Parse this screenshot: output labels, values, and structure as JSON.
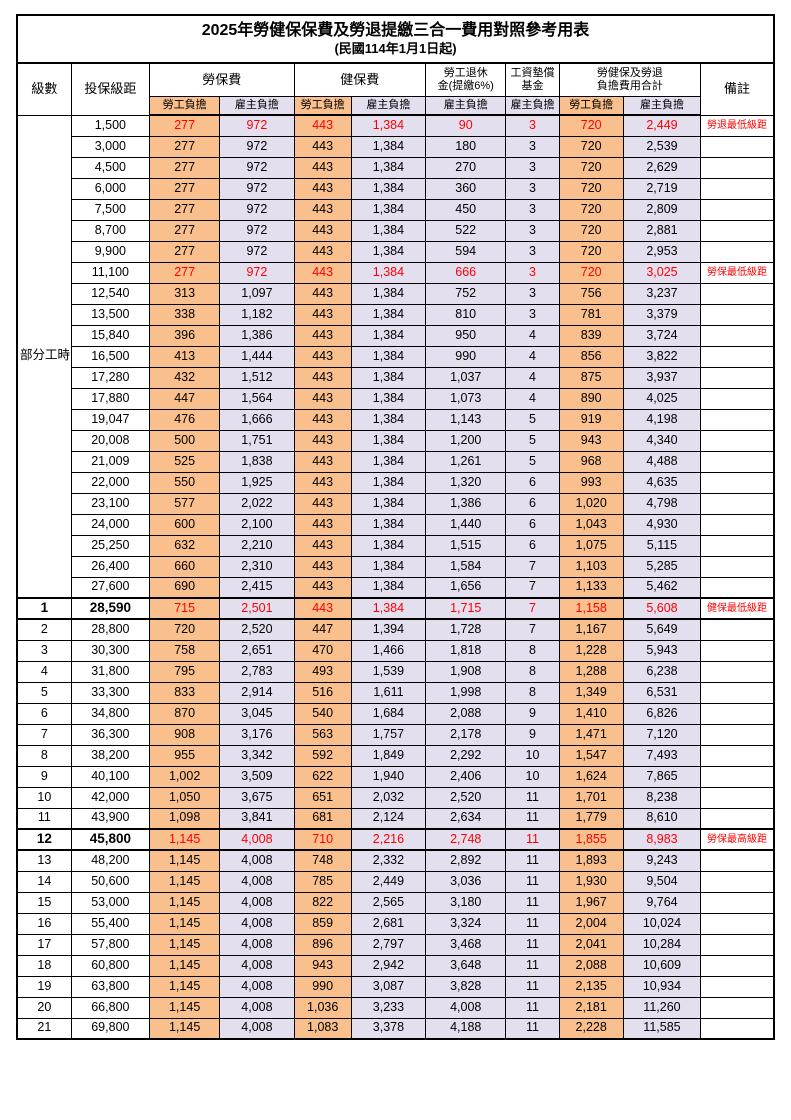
{
  "title": "2025年勞健保保費及勞退提繳三合一費用對照參考用表",
  "subtitle": "(民國114年1月1日起)",
  "colors": {
    "employee_column_bg": "#F9C08D",
    "employer_column_bg": "#E3DFEF",
    "highlight_text": "#FF0000",
    "border": "#000000"
  },
  "header": {
    "level": "級數",
    "bracket": "投保級距",
    "labor_insurance": "勞保費",
    "health_insurance": "健保費",
    "pension": "勞工退休\n金(提繳6%)",
    "wage_fund": "工資墊償\n基金",
    "total": "勞健保及勞退\n負擔費用合計",
    "remark": "備註",
    "employee_share": "勞工負擔",
    "employer_share": "雇主負擔"
  },
  "part_time": {
    "label": "部分工時",
    "rows": [
      {
        "cells": [
          "1,500",
          "277",
          "972",
          "443",
          "1,384",
          "90",
          "3",
          "720",
          "2,449",
          "勞退最低級距"
        ],
        "highlight": true
      },
      {
        "cells": [
          "3,000",
          "277",
          "972",
          "443",
          "1,384",
          "180",
          "3",
          "720",
          "2,539",
          ""
        ]
      },
      {
        "cells": [
          "4,500",
          "277",
          "972",
          "443",
          "1,384",
          "270",
          "3",
          "720",
          "2,629",
          ""
        ]
      },
      {
        "cells": [
          "6,000",
          "277",
          "972",
          "443",
          "1,384",
          "360",
          "3",
          "720",
          "2,719",
          ""
        ]
      },
      {
        "cells": [
          "7,500",
          "277",
          "972",
          "443",
          "1,384",
          "450",
          "3",
          "720",
          "2,809",
          ""
        ]
      },
      {
        "cells": [
          "8,700",
          "277",
          "972",
          "443",
          "1,384",
          "522",
          "3",
          "720",
          "2,881",
          ""
        ]
      },
      {
        "cells": [
          "9,900",
          "277",
          "972",
          "443",
          "1,384",
          "594",
          "3",
          "720",
          "2,953",
          ""
        ]
      },
      {
        "cells": [
          "11,100",
          "277",
          "972",
          "443",
          "1,384",
          "666",
          "3",
          "720",
          "3,025",
          "勞保最低級距"
        ],
        "highlight": true
      },
      {
        "cells": [
          "12,540",
          "313",
          "1,097",
          "443",
          "1,384",
          "752",
          "3",
          "756",
          "3,237",
          ""
        ]
      },
      {
        "cells": [
          "13,500",
          "338",
          "1,182",
          "443",
          "1,384",
          "810",
          "3",
          "781",
          "3,379",
          ""
        ]
      },
      {
        "cells": [
          "15,840",
          "396",
          "1,386",
          "443",
          "1,384",
          "950",
          "4",
          "839",
          "3,724",
          ""
        ]
      },
      {
        "cells": [
          "16,500",
          "413",
          "1,444",
          "443",
          "1,384",
          "990",
          "4",
          "856",
          "3,822",
          ""
        ]
      },
      {
        "cells": [
          "17,280",
          "432",
          "1,512",
          "443",
          "1,384",
          "1,037",
          "4",
          "875",
          "3,937",
          ""
        ]
      },
      {
        "cells": [
          "17,880",
          "447",
          "1,564",
          "443",
          "1,384",
          "1,073",
          "4",
          "890",
          "4,025",
          ""
        ]
      },
      {
        "cells": [
          "19,047",
          "476",
          "1,666",
          "443",
          "1,384",
          "1,143",
          "5",
          "919",
          "4,198",
          ""
        ]
      },
      {
        "cells": [
          "20,008",
          "500",
          "1,751",
          "443",
          "1,384",
          "1,200",
          "5",
          "943",
          "4,340",
          ""
        ]
      },
      {
        "cells": [
          "21,009",
          "525",
          "1,838",
          "443",
          "1,384",
          "1,261",
          "5",
          "968",
          "4,488",
          ""
        ]
      },
      {
        "cells": [
          "22,000",
          "550",
          "1,925",
          "443",
          "1,384",
          "1,320",
          "6",
          "993",
          "4,635",
          ""
        ]
      },
      {
        "cells": [
          "23,100",
          "577",
          "2,022",
          "443",
          "1,384",
          "1,386",
          "6",
          "1,020",
          "4,798",
          ""
        ]
      },
      {
        "cells": [
          "24,000",
          "600",
          "2,100",
          "443",
          "1,384",
          "1,440",
          "6",
          "1,043",
          "4,930",
          ""
        ]
      },
      {
        "cells": [
          "25,250",
          "632",
          "2,210",
          "443",
          "1,384",
          "1,515",
          "6",
          "1,075",
          "5,115",
          ""
        ]
      },
      {
        "cells": [
          "26,400",
          "660",
          "2,310",
          "443",
          "1,384",
          "1,584",
          "7",
          "1,103",
          "5,285",
          ""
        ]
      },
      {
        "cells": [
          "27,600",
          "690",
          "2,415",
          "443",
          "1,384",
          "1,656",
          "7",
          "1,133",
          "5,462",
          ""
        ]
      }
    ]
  },
  "levels": {
    "rows": [
      {
        "level": "1",
        "cells": [
          "28,590",
          "715",
          "2,501",
          "443",
          "1,384",
          "1,715",
          "7",
          "1,158",
          "5,608",
          "健保最低級距"
        ],
        "highlight": true,
        "box": true,
        "bold": true
      },
      {
        "level": "2",
        "cells": [
          "28,800",
          "720",
          "2,520",
          "447",
          "1,394",
          "1,728",
          "7",
          "1,167",
          "5,649",
          ""
        ]
      },
      {
        "level": "3",
        "cells": [
          "30,300",
          "758",
          "2,651",
          "470",
          "1,466",
          "1,818",
          "8",
          "1,228",
          "5,943",
          ""
        ]
      },
      {
        "level": "4",
        "cells": [
          "31,800",
          "795",
          "2,783",
          "493",
          "1,539",
          "1,908",
          "8",
          "1,288",
          "6,238",
          ""
        ]
      },
      {
        "level": "5",
        "cells": [
          "33,300",
          "833",
          "2,914",
          "516",
          "1,611",
          "1,998",
          "8",
          "1,349",
          "6,531",
          ""
        ]
      },
      {
        "level": "6",
        "cells": [
          "34,800",
          "870",
          "3,045",
          "540",
          "1,684",
          "2,088",
          "9",
          "1,410",
          "6,826",
          ""
        ]
      },
      {
        "level": "7",
        "cells": [
          "36,300",
          "908",
          "3,176",
          "563",
          "1,757",
          "2,178",
          "9",
          "1,471",
          "7,120",
          ""
        ]
      },
      {
        "level": "8",
        "cells": [
          "38,200",
          "955",
          "3,342",
          "592",
          "1,849",
          "2,292",
          "10",
          "1,547",
          "7,493",
          ""
        ]
      },
      {
        "level": "9",
        "cells": [
          "40,100",
          "1,002",
          "3,509",
          "622",
          "1,940",
          "2,406",
          "10",
          "1,624",
          "7,865",
          ""
        ]
      },
      {
        "level": "10",
        "cells": [
          "42,000",
          "1,050",
          "3,675",
          "651",
          "2,032",
          "2,520",
          "11",
          "1,701",
          "8,238",
          ""
        ]
      },
      {
        "level": "11",
        "cells": [
          "43,900",
          "1,098",
          "3,841",
          "681",
          "2,124",
          "2,634",
          "11",
          "1,779",
          "8,610",
          ""
        ]
      },
      {
        "level": "12",
        "cells": [
          "45,800",
          "1,145",
          "4,008",
          "710",
          "2,216",
          "2,748",
          "11",
          "1,855",
          "8,983",
          "勞保最高級距"
        ],
        "highlight": true,
        "box": true,
        "bold": true
      },
      {
        "level": "13",
        "cells": [
          "48,200",
          "1,145",
          "4,008",
          "748",
          "2,332",
          "2,892",
          "11",
          "1,893",
          "9,243",
          ""
        ]
      },
      {
        "level": "14",
        "cells": [
          "50,600",
          "1,145",
          "4,008",
          "785",
          "2,449",
          "3,036",
          "11",
          "1,930",
          "9,504",
          ""
        ]
      },
      {
        "level": "15",
        "cells": [
          "53,000",
          "1,145",
          "4,008",
          "822",
          "2,565",
          "3,180",
          "11",
          "1,967",
          "9,764",
          ""
        ]
      },
      {
        "level": "16",
        "cells": [
          "55,400",
          "1,145",
          "4,008",
          "859",
          "2,681",
          "3,324",
          "11",
          "2,004",
          "10,024",
          ""
        ]
      },
      {
        "level": "17",
        "cells": [
          "57,800",
          "1,145",
          "4,008",
          "896",
          "2,797",
          "3,468",
          "11",
          "2,041",
          "10,284",
          ""
        ]
      },
      {
        "level": "18",
        "cells": [
          "60,800",
          "1,145",
          "4,008",
          "943",
          "2,942",
          "3,648",
          "11",
          "2,088",
          "10,609",
          ""
        ]
      },
      {
        "level": "19",
        "cells": [
          "63,800",
          "1,145",
          "4,008",
          "990",
          "3,087",
          "3,828",
          "11",
          "2,135",
          "10,934",
          ""
        ]
      },
      {
        "level": "20",
        "cells": [
          "66,800",
          "1,145",
          "4,008",
          "1,036",
          "3,233",
          "4,008",
          "11",
          "2,181",
          "11,260",
          ""
        ]
      },
      {
        "level": "21",
        "cells": [
          "69,800",
          "1,145",
          "4,008",
          "1,083",
          "3,378",
          "4,188",
          "11",
          "2,228",
          "11,585",
          ""
        ]
      }
    ]
  }
}
